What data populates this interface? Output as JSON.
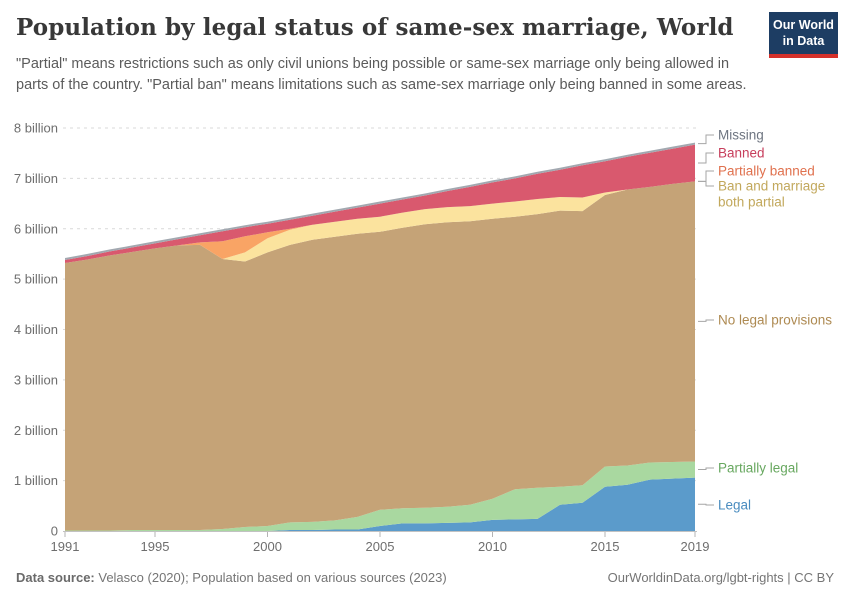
{
  "header": {
    "title": "Population by legal status of same-sex marriage, World",
    "subtitle": "\"Partial\" means restrictions such as only civil unions being possible or same-sex marriage only being allowed in parts of the country. \"Partial ban\" means limitations such as same-sex marriage only being banned in some areas.",
    "logo": {
      "line1": "Our World",
      "line2": "in Data"
    }
  },
  "footer": {
    "source_label": "Data source:",
    "source_text": " Velasco (2020); Population based on various sources (2023)",
    "link_text": "OurWorldinData.org/lgbt-rights | CC BY"
  },
  "chart_data": {
    "type": "area",
    "stacked": true,
    "title": "Population by legal status of same-sex marriage, World",
    "unit": "billion people",
    "ylim": [
      0,
      8
    ],
    "grid": true,
    "legend_position": "right",
    "x": [
      1991,
      1992,
      1993,
      1994,
      1995,
      1996,
      1997,
      1998,
      1999,
      2000,
      2001,
      2002,
      2003,
      2004,
      2005,
      2006,
      2007,
      2008,
      2009,
      2010,
      2011,
      2012,
      2013,
      2014,
      2015,
      2016,
      2017,
      2018,
      2019
    ],
    "x_ticks": [
      1991,
      1995,
      2000,
      2005,
      2010,
      2015,
      2019
    ],
    "y_ticks": [
      {
        "value": 0,
        "label": "0"
      },
      {
        "value": 1,
        "label": "1 billion"
      },
      {
        "value": 2,
        "label": "2 billion"
      },
      {
        "value": 3,
        "label": "3 billion"
      },
      {
        "value": 4,
        "label": "4 billion"
      },
      {
        "value": 5,
        "label": "5 billion"
      },
      {
        "value": 6,
        "label": "6 billion"
      },
      {
        "value": 7,
        "label": "7 billion"
      },
      {
        "value": 8,
        "label": "8 billion"
      }
    ],
    "series": [
      {
        "name": "legal",
        "label": "Legal",
        "color": "#5B9BCB",
        "label_color": "#4A8CBF",
        "values": [
          0,
          0,
          0,
          0,
          0,
          0,
          0,
          0,
          0,
          0,
          0.02,
          0.02,
          0.03,
          0.03,
          0.1,
          0.15,
          0.15,
          0.16,
          0.17,
          0.22,
          0.23,
          0.24,
          0.52,
          0.56,
          0.88,
          0.92,
          1.02,
          1.04,
          1.06
        ]
      },
      {
        "name": "partially-legal",
        "label": "Partially legal",
        "color": "#A9D8A0",
        "label_color": "#68A860",
        "values": [
          0.01,
          0.01,
          0.01,
          0.02,
          0.02,
          0.02,
          0.02,
          0.04,
          0.08,
          0.1,
          0.15,
          0.16,
          0.18,
          0.25,
          0.32,
          0.3,
          0.31,
          0.32,
          0.35,
          0.42,
          0.6,
          0.62,
          0.36,
          0.35,
          0.4,
          0.38,
          0.34,
          0.33,
          0.32
        ]
      },
      {
        "name": "no-legal-provisions",
        "label": "No legal provisions",
        "color": "#C5A377",
        "label_color": "#AE8A52",
        "values": [
          5.31,
          5.38,
          5.46,
          5.52,
          5.59,
          5.65,
          5.66,
          5.36,
          5.27,
          5.43,
          5.51,
          5.6,
          5.63,
          5.62,
          5.52,
          5.57,
          5.63,
          5.65,
          5.63,
          5.56,
          5.41,
          5.43,
          5.48,
          5.44,
          5.39,
          5.48,
          5.47,
          5.52,
          5.56
        ]
      },
      {
        "name": "ban-and-marriage-both-partial",
        "label": "Ban and marriage both partial",
        "label_lines": [
          "Ban and marriage",
          "both partial"
        ],
        "color": "#FBE39E",
        "label_color": "#C2A85C",
        "values": [
          0,
          0,
          0,
          0,
          0,
          0,
          0,
          0,
          0.18,
          0.28,
          0.3,
          0.3,
          0.3,
          0.3,
          0.3,
          0.3,
          0.3,
          0.3,
          0.3,
          0.3,
          0.3,
          0.3,
          0.27,
          0.27,
          0.05,
          0,
          0,
          0,
          0
        ]
      },
      {
        "name": "partially-banned",
        "label": "Partially banned",
        "color": "#F9A465",
        "label_color": "#E0714E",
        "values": [
          0,
          0,
          0,
          0,
          0,
          0,
          0.05,
          0.35,
          0.32,
          0.12,
          0.02,
          0,
          0,
          0,
          0,
          0,
          0,
          0,
          0,
          0,
          0,
          0,
          0,
          0,
          0,
          0,
          0,
          0,
          0
        ]
      },
      {
        "name": "banned",
        "label": "Banned",
        "color": "#D9596E",
        "label_color": "#C73E5C",
        "values": [
          0.06,
          0.07,
          0.08,
          0.09,
          0.1,
          0.12,
          0.14,
          0.2,
          0.18,
          0.17,
          0.18,
          0.18,
          0.2,
          0.22,
          0.26,
          0.26,
          0.27,
          0.32,
          0.38,
          0.42,
          0.46,
          0.5,
          0.54,
          0.64,
          0.62,
          0.65,
          0.68,
          0.7,
          0.73
        ]
      },
      {
        "name": "missing",
        "label": "Missing",
        "color": "#A2A8B0",
        "label_color": "#6E7581",
        "values": [
          0.04,
          0.04,
          0.04,
          0.04,
          0.04,
          0.04,
          0.04,
          0.04,
          0.04,
          0.04,
          0.04,
          0.04,
          0.04,
          0.04,
          0.04,
          0.04,
          0.04,
          0.04,
          0.04,
          0.04,
          0.04,
          0.04,
          0.04,
          0.04,
          0.04,
          0.04,
          0.04,
          0.04,
          0.04
        ]
      }
    ]
  }
}
